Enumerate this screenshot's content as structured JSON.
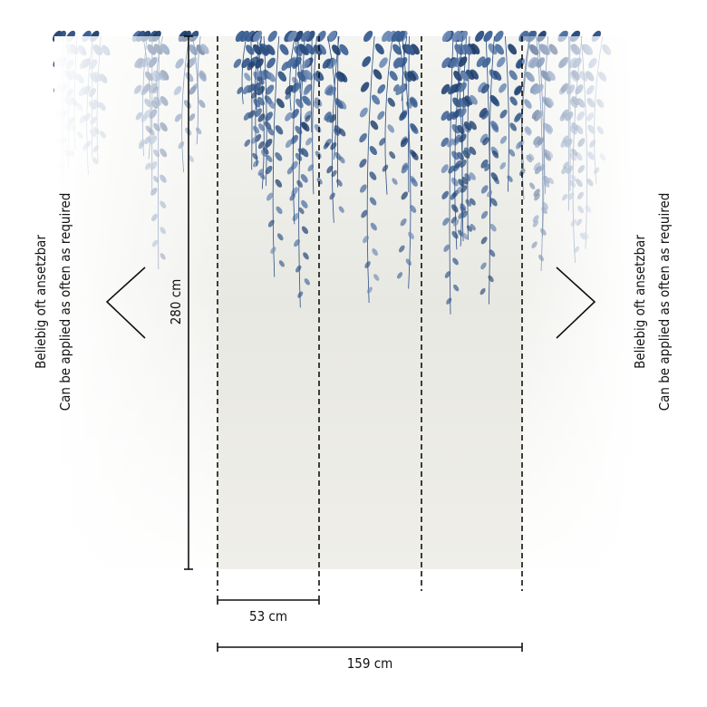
{
  "dimensions": {
    "height": "280 cm",
    "panel_width": "53 cm",
    "total_width": "159 cm"
  },
  "left_note": {
    "lines": [
      "Beliebig oft ansetzbar",
      "Can be applied as often as required"
    ]
  },
  "right_note": {
    "lines": [
      "Beliebig oft ansetzbar",
      "Can be applied as often as required"
    ]
  }
}
